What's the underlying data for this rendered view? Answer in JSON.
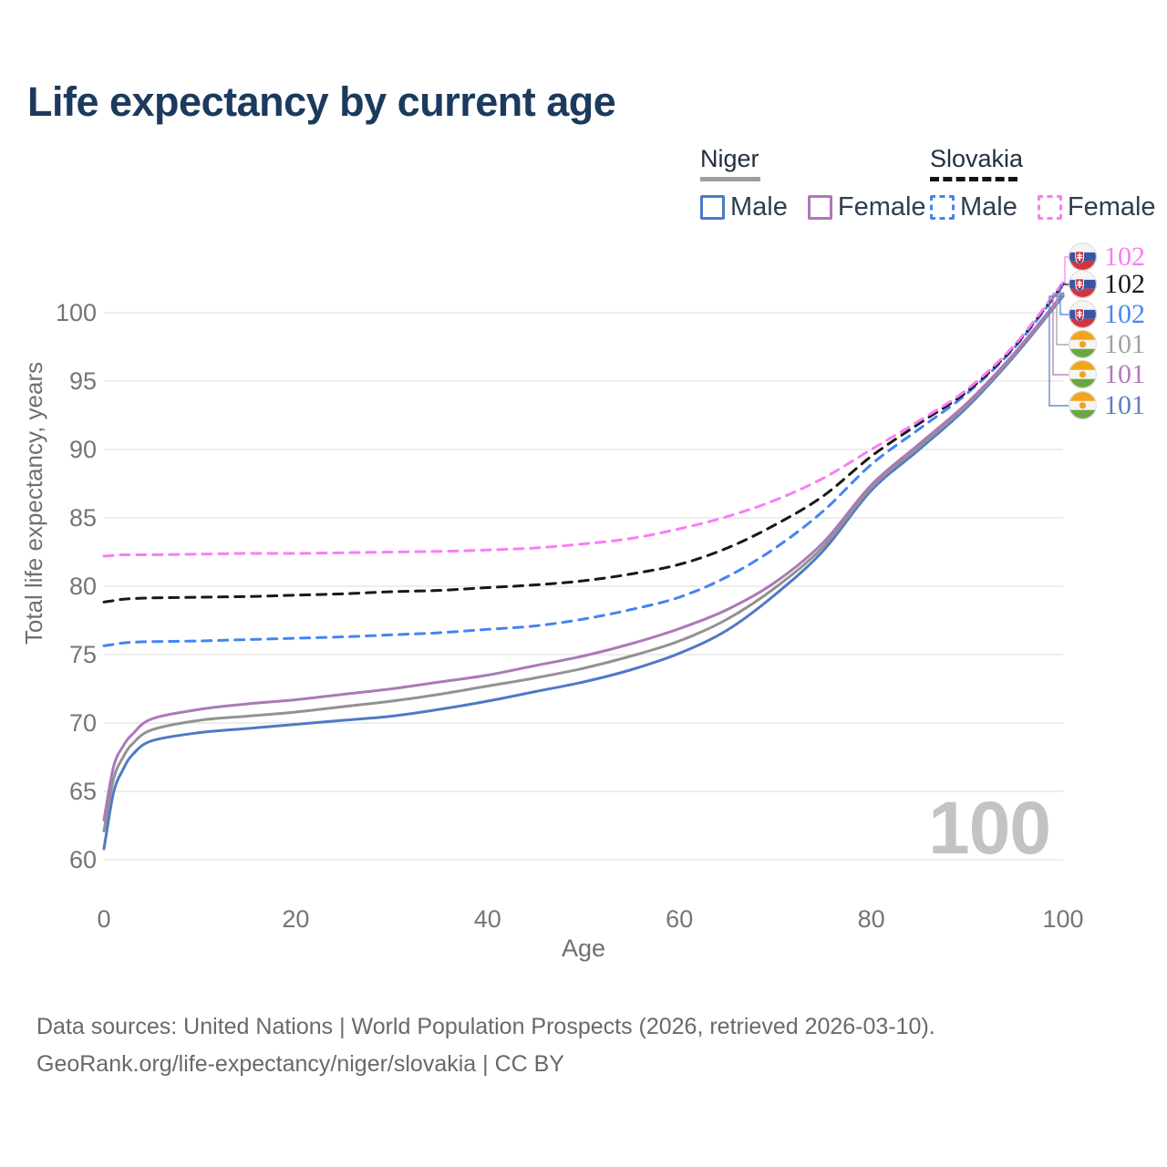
{
  "title": "Life expectancy by current age",
  "watermark": "100",
  "legend": {
    "groups": [
      {
        "label": "Niger",
        "line_style": "solid",
        "underline_color": "#9e9e9e",
        "items": [
          {
            "label": "Male",
            "series": "niger_male"
          },
          {
            "label": "Female",
            "series": "niger_female"
          }
        ]
      },
      {
        "label": "Slovakia",
        "line_style": "dashed",
        "underline_color": "#141414",
        "items": [
          {
            "label": "Male",
            "series": "slovakia_male"
          },
          {
            "label": "Female",
            "series": "slovakia_female"
          }
        ]
      }
    ]
  },
  "series_colors": {
    "niger_male": "#4e79c7",
    "niger_female": "#ab79b6",
    "niger_both": "#929292",
    "slovakia_male": "#4484f3",
    "slovakia_female": "#fa7df5",
    "slovakia_both": "#181818"
  },
  "right_labels": [
    {
      "series": "slovakia_female",
      "flag": "slovakia",
      "value": "102",
      "color": "#f97ef2"
    },
    {
      "series": "slovakia_both",
      "flag": "slovakia",
      "value": "102",
      "color": "#1a1a1a"
    },
    {
      "series": "slovakia_male",
      "flag": "slovakia",
      "value": "102",
      "color": "#4b87f0"
    },
    {
      "series": "niger_both",
      "flag": "niger",
      "value": "101",
      "color": "#a3a3a3"
    },
    {
      "series": "niger_female",
      "flag": "niger",
      "value": "101",
      "color": "#b07cb8"
    },
    {
      "series": "niger_male",
      "flag": "niger",
      "value": "101",
      "color": "#5c7fc4"
    }
  ],
  "footer": {
    "line1": "Data sources: United Nations | World Population Prospects (2026, retrieved 2026-03-10).",
    "line2": "GeoRank.org/life-expectancy/niger/slovakia | CC BY"
  },
  "chart_data": {
    "type": "line",
    "title": "Life expectancy by current age",
    "xlabel": "Age",
    "ylabel": "Total life expectancy, years",
    "xlim": [
      0,
      100
    ],
    "ylim": [
      60,
      100
    ],
    "x_ticks": [
      0,
      20,
      40,
      60,
      80,
      100
    ],
    "y_ticks": [
      60,
      65,
      70,
      75,
      80,
      85,
      90,
      95,
      100
    ],
    "grid": true,
    "legend_position": "top-right",
    "x": [
      0,
      1,
      2,
      3,
      5,
      10,
      15,
      20,
      25,
      30,
      35,
      40,
      45,
      50,
      55,
      60,
      65,
      70,
      75,
      80,
      85,
      90,
      95,
      100
    ],
    "series": [
      {
        "name": "Niger Male",
        "key": "niger_male",
        "style": "solid",
        "end_label": "101",
        "values": [
          60.8,
          64.9,
          66.6,
          67.7,
          68.7,
          69.3,
          69.6,
          69.9,
          70.2,
          70.5,
          71.0,
          71.6,
          72.3,
          73.0,
          73.9,
          75.1,
          76.8,
          79.4,
          82.6,
          87.0,
          90.0,
          93.1,
          96.9,
          101.2
        ]
      },
      {
        "name": "Niger Both sexes",
        "key": "niger_both",
        "style": "solid",
        "end_label": "101",
        "values": [
          62.1,
          65.9,
          67.5,
          68.5,
          69.5,
          70.2,
          70.5,
          70.8,
          71.2,
          71.6,
          72.1,
          72.7,
          73.3,
          74.0,
          74.9,
          76.0,
          77.6,
          79.9,
          82.9,
          87.2,
          90.2,
          93.25,
          97.0,
          101.3
        ]
      },
      {
        "name": "Niger Female",
        "key": "niger_female",
        "style": "solid",
        "end_label": "101",
        "values": [
          62.9,
          66.8,
          68.3,
          69.2,
          70.3,
          71.0,
          71.4,
          71.7,
          72.1,
          72.5,
          73.0,
          73.5,
          74.2,
          74.9,
          75.8,
          76.9,
          78.3,
          80.3,
          83.2,
          87.4,
          90.4,
          93.4,
          97.1,
          101.4
        ]
      },
      {
        "name": "Slovakia Male",
        "key": "slovakia_male",
        "style": "dashed",
        "end_label": "102",
        "values": [
          75.65,
          75.75,
          75.85,
          75.9,
          75.95,
          76.0,
          76.1,
          76.2,
          76.3,
          76.45,
          76.6,
          76.85,
          77.1,
          77.6,
          78.3,
          79.2,
          80.7,
          82.8,
          85.5,
          88.9,
          91.5,
          94.1,
          97.5,
          102.0
        ]
      },
      {
        "name": "Slovakia Both sexes",
        "key": "slovakia_both",
        "style": "dashed",
        "end_label": "102",
        "values": [
          78.85,
          78.95,
          79.05,
          79.1,
          79.15,
          79.2,
          79.25,
          79.35,
          79.45,
          79.6,
          79.7,
          79.9,
          80.1,
          80.4,
          80.9,
          81.6,
          82.8,
          84.5,
          86.6,
          89.5,
          91.9,
          94.25,
          97.6,
          102.1
        ]
      },
      {
        "name": "Slovakia Female",
        "key": "slovakia_female",
        "style": "dashed",
        "end_label": "102",
        "values": [
          82.2,
          82.25,
          82.3,
          82.3,
          82.3,
          82.35,
          82.4,
          82.4,
          82.45,
          82.5,
          82.55,
          82.65,
          82.8,
          83.1,
          83.5,
          84.2,
          85.1,
          86.3,
          87.9,
          90.0,
          92.1,
          94.4,
          97.7,
          102.2
        ]
      }
    ]
  }
}
